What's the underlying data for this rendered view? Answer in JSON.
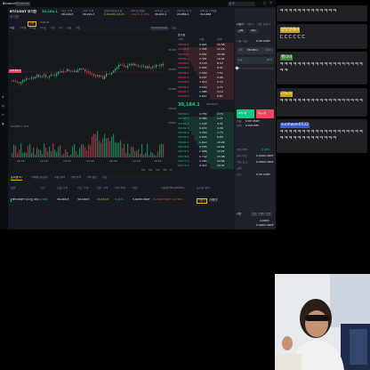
{
  "window": {
    "title": "Binance",
    "tab_label": "Binance",
    "search_placeholder": "검색"
  },
  "pair": {
    "symbol": "BTCUSDT 무기한",
    "sub": "무기한",
    "price": "30,184.1",
    "tags": [
      "선물",
      "USD-M"
    ]
  },
  "header_stats": [
    {
      "label": "마크 가격",
      "value": "30,190.5"
    },
    {
      "label": "지수 가격",
      "value": "30,201.3"
    },
    {
      "label": "펀딩/카운트다운",
      "value": "0.0100% 04:21"
    },
    {
      "label": "24시간 변동",
      "value": "-412.3 -1.35%"
    },
    {
      "label": "24시간 고가",
      "value": "30,921.0"
    },
    {
      "label": "24시간 저가",
      "value": "29,884.2"
    },
    {
      "label": "24시간 거래량",
      "value": "312,884"
    }
  ],
  "chart": {
    "toolbar": [
      "시간",
      "15분",
      "1시간",
      "4시간",
      "1일",
      "1주",
      "지표",
      "차트"
    ],
    "right_toolbar": [
      "TradingView",
      "심도"
    ],
    "volume_label": "Vol(BTC): 312",
    "price_ticks": [
      "31000",
      "30500",
      "30000",
      "29500",
      "29000"
    ],
    "time_ticks": [
      "06:00",
      "12:00",
      "18:00",
      "00:00",
      "06:00",
      "12:00",
      "18:00"
    ],
    "current_price_tag": "30184.1",
    "range_buttons": [
      "1D",
      "5D",
      "1M",
      "3M",
      "1Y"
    ]
  },
  "chart_colors": {
    "up": "#0ecb81",
    "down": "#f6465d",
    "accent": "#f0b90b"
  },
  "orderbook": {
    "title": "호가창",
    "headers": [
      "가격",
      "수량",
      "합계"
    ],
    "asks": [
      [
        "30191.5",
        "0.421",
        "12.58"
      ],
      [
        "30190.8",
        "1.204",
        "12.16"
      ],
      [
        "30190.1",
        "0.052",
        "10.96"
      ],
      [
        "30189.7",
        "2.381",
        "10.91"
      ],
      [
        "30189.2",
        "0.118",
        "8.53"
      ],
      [
        "30188.6",
        "0.904",
        "8.41"
      ],
      [
        "30188.0",
        "1.550",
        "7.51"
      ],
      [
        "30187.4",
        "0.237",
        "5.96"
      ],
      [
        "30186.9",
        "3.012",
        "5.72"
      ],
      [
        "30186.3",
        "0.610",
        "2.71"
      ],
      [
        "30185.7",
        "1.488",
        "2.10"
      ],
      [
        "30185.0",
        "0.612",
        "0.61"
      ]
    ],
    "mid_price": "30,184.1",
    "mid_mark": "30,190.5",
    "bids": [
      [
        "30184.0",
        "2.730",
        "2.73"
      ],
      [
        "30183.5",
        "0.480",
        "3.21"
      ],
      [
        "30182.9",
        "1.105",
        "4.31"
      ],
      [
        "30182.2",
        "0.072",
        "4.39"
      ],
      [
        "30181.6",
        "3.340",
        "7.73"
      ],
      [
        "30181.0",
        "0.925",
        "8.65"
      ],
      [
        "30180.4",
        "1.610",
        "10.26"
      ],
      [
        "30179.8",
        "0.355",
        "10.62"
      ],
      [
        "30179.1",
        "2.048",
        "12.67"
      ],
      [
        "30178.5",
        "0.712",
        "13.38"
      ],
      [
        "30177.9",
        "1.180",
        "14.56"
      ],
      [
        "30177.2",
        "0.413",
        "14.97"
      ]
    ]
  },
  "order_panel": {
    "tabs": [
      "지정가",
      "시장가",
      "스탑 지정가"
    ],
    "mode_buttons": [
      "교차",
      "20x"
    ],
    "fields": [
      {
        "label": "가격",
        "value": "30184.1",
        "unit": "USDT"
      },
      {
        "label": "수량",
        "value": "",
        "unit": "BTC"
      }
    ],
    "available_label": "사용 가능",
    "available_value": "0.00 USDT",
    "buy_button": "매수/롱",
    "sell_button": "매도/숏",
    "cost_label": "비용",
    "cost_value": "0.00 USDT",
    "max_label": "최대",
    "max_value": "0.000 BTC",
    "side_labels": [
      "마진 비율",
      "유지 마진",
      "마진 잔고",
      "교차",
      "잔고"
    ],
    "side_values": [
      "0.00%",
      "0.0000 USDT",
      "0.0000 USDT",
      "",
      "0.00 USDT"
    ],
    "bottom_labels": [
      "자산",
      "입금",
      "이체",
      "전환"
    ],
    "bottom_values": [
      "0.0000",
      "0.0000 USDT",
      "0.0000 USDT",
      "0.00 USDT"
    ]
  },
  "bottom_tabs": [
    "포지션(1)",
    "미체결 주문(0)",
    "주문 내역",
    "거래 내역",
    "거래 정보",
    "자산"
  ],
  "positions": {
    "headers": [
      "심볼",
      "크기",
      "진입 가격",
      "마크 가격",
      "청산 가격",
      "마진 비율",
      "마진",
      "미실현 PNL(ROE%)",
      "포지션 정리"
    ],
    "row": [
      "BTCUSDT 무기한 20x",
      "0.002",
      "30,292.8",
      "30,190.5",
      "24,311.8",
      "3.41%",
      "3.0238 USDT",
      "-0.2046 USDT (-6.76%)",
      "시장가"
    ],
    "row_buttons": [
      "지정가",
      "시장가"
    ]
  },
  "chat": [
    {
      "user": "",
      "text": "ㅋㅋㅋㅋㅋㅋㅋㅋㅋㅋㅋㅋㅋ",
      "user_color": "#1f2124"
    },
    {
      "user": "발발발레바",
      "text": "ㄷㄷㄷㄷㄷㄷ",
      "user_color": "#c9a227"
    },
    {
      "user": "헬리비",
      "text": "ㅋㅋㅋㅋㅋㅋㅋㅋㅋㅋㅋㅋㅋㅋㅋㅋㅋㅋㅋㅋㅋ",
      "user_color": "#3a8a3a"
    },
    {
      "user": "그노스",
      "text": "ㅋㅋㅋㅋㅋㅋㅋㅋㅋㅋㅋㅋㅋㅋㅋㅋㅋㅋㅋ",
      "user_color": "#c9a227"
    },
    {
      "user": "sunhwan0532",
      "text": "ㅋㅋㅋㅋㅋㅋㅋㅋㅋㅋㅋㅋㅋㅋㅋㅋㅋㅋㅋㅋㅋㅋㅋㅋㅋㅋㅋㅋㅋㅋㅋㅋ",
      "user_color": "#3b5bdb"
    }
  ],
  "webcam": {
    "label": "webcam"
  }
}
